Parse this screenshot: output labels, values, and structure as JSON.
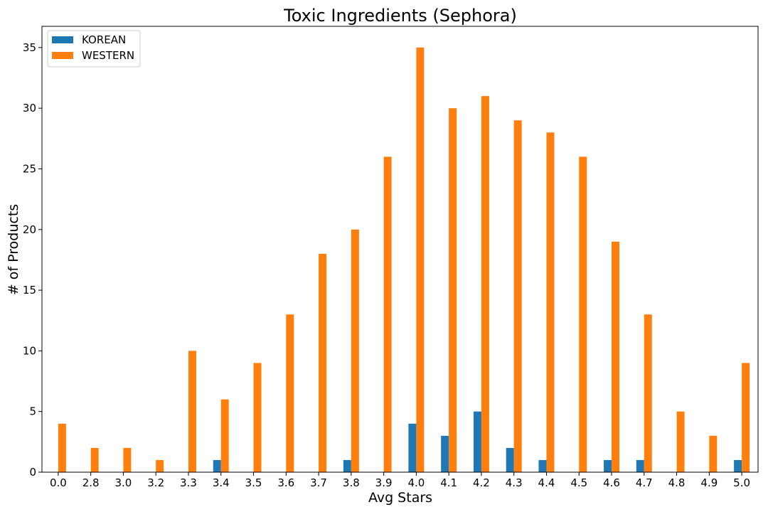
{
  "chart_data": {
    "type": "bar",
    "title": "Toxic Ingredients (Sephora)",
    "xlabel": "Avg Stars",
    "ylabel": "# of Products",
    "categories": [
      "0.0",
      "2.8",
      "3.0",
      "3.2",
      "3.3",
      "3.4",
      "3.5",
      "3.6",
      "3.7",
      "3.8",
      "3.9",
      "4.0",
      "4.1",
      "4.2",
      "4.3",
      "4.4",
      "4.5",
      "4.6",
      "4.7",
      "4.8",
      "4.9",
      "5.0"
    ],
    "series": [
      {
        "name": "KOREAN",
        "color": "#1f77b4",
        "values": [
          0,
          0,
          0,
          0,
          0,
          1,
          0,
          0,
          0,
          1,
          0,
          4,
          3,
          5,
          2,
          1,
          0,
          1,
          1,
          0,
          0,
          1
        ]
      },
      {
        "name": "WESTERN",
        "color": "#ff7f0e",
        "values": [
          4,
          2,
          2,
          1,
          10,
          6,
          9,
          13,
          18,
          20,
          26,
          35,
          30,
          31,
          29,
          28,
          26,
          19,
          13,
          5,
          3,
          9
        ]
      }
    ],
    "ylim": [
      0,
      36.75
    ],
    "yticks": [
      0,
      5,
      10,
      15,
      20,
      25,
      30,
      35
    ],
    "grid": false,
    "legend_position": "top-left"
  }
}
